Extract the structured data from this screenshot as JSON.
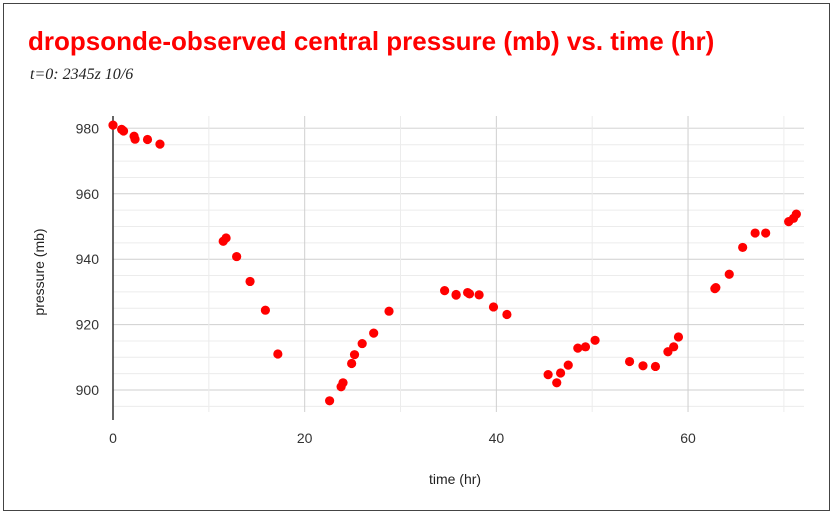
{
  "chart_data": {
    "type": "scatter",
    "title": "dropsonde-observed central pressure (mb) vs. time (hr)",
    "subtitle": "t=0: 2345z 10/6",
    "xlabel": "time (hr)",
    "ylabel": "pressure (mb)",
    "xlim": [
      0,
      72
    ],
    "ylim": [
      890,
      984
    ],
    "xticks": [
      0,
      20,
      40,
      60
    ],
    "yticks": [
      900,
      920,
      940,
      960,
      980
    ],
    "grid": true,
    "marker_color": "#ff0000",
    "series": [
      {
        "x": [
          0.0,
          0.9,
          1.1,
          2.2,
          2.3,
          3.6,
          4.9,
          11.5,
          11.8,
          12.9,
          14.3,
          15.9,
          17.2,
          22.6,
          23.8,
          24.0,
          24.9,
          25.2,
          26.0,
          27.2,
          28.8,
          34.6,
          35.8,
          35.8,
          37.0,
          37.2,
          38.2,
          39.7,
          41.1,
          45.4,
          46.3,
          46.7,
          47.5,
          48.5,
          49.3,
          50.3,
          53.9,
          55.3,
          56.6,
          57.9,
          58.5,
          59.0,
          62.8,
          62.9,
          64.3,
          65.7,
          67.0,
          68.1,
          70.5,
          71.0,
          71.3
        ],
        "y": [
          981.0,
          979.7,
          979.2,
          977.6,
          976.7,
          976.6,
          975.2,
          945.5,
          946.5,
          940.8,
          933.2,
          924.4,
          911.0,
          896.7,
          901.0,
          902.2,
          908.1,
          910.8,
          914.2,
          917.4,
          924.1,
          930.4,
          929.0,
          929.2,
          929.8,
          929.4,
          929.1,
          925.4,
          923.1,
          904.7,
          902.2,
          905.2,
          907.6,
          912.8,
          913.2,
          915.2,
          908.7,
          907.4,
          907.2,
          911.7,
          913.2,
          916.2,
          931.0,
          931.3,
          935.4,
          943.6,
          948.0,
          948.0,
          951.5,
          952.5,
          953.8
        ]
      }
    ]
  }
}
